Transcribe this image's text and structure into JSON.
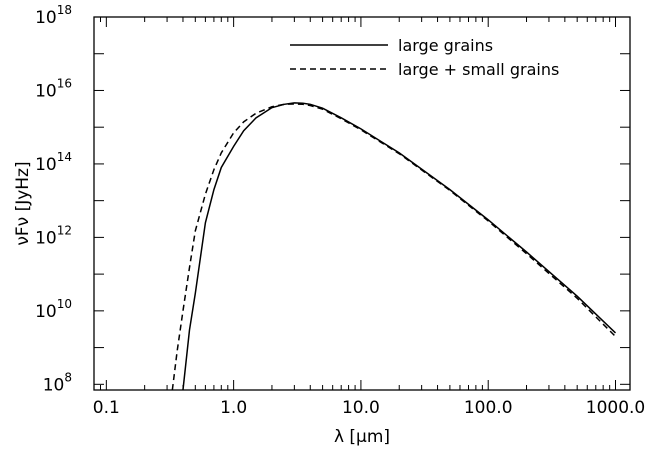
{
  "chart_data": {
    "type": "line",
    "xlabel": "λ [μm]",
    "ylabel": "νFν [JyHz]",
    "xscale": "log",
    "yscale": "log",
    "xlim": [
      0.08,
      1300
    ],
    "ylim": [
      70000000.0,
      1e+18
    ],
    "x_ticks": [
      "0.1",
      "1.0",
      "10.0",
      "100.0",
      "1000.0"
    ],
    "y_ticks": [
      {
        "base": "10",
        "exp": "8",
        "value": 100000000.0
      },
      {
        "base": "10",
        "exp": "10",
        "value": 10000000000.0
      },
      {
        "base": "10",
        "exp": "12",
        "value": 1000000000000.0
      },
      {
        "base": "10",
        "exp": "14",
        "value": 100000000000000.0
      },
      {
        "base": "10",
        "exp": "16",
        "value": 1e+16
      },
      {
        "base": "10",
        "exp": "18",
        "value": 1e+18
      }
    ],
    "grid": false,
    "legend_position": "top-right",
    "series": [
      {
        "name": "large grains",
        "style": "solid",
        "color": "#000000",
        "points": [
          [
            0.4,
            70000000.0
          ],
          [
            0.45,
            3000000000.0
          ],
          [
            0.5,
            30000000000.0
          ],
          [
            0.6,
            2500000000000.0
          ],
          [
            0.7,
            20000000000000.0
          ],
          [
            0.8,
            80000000000000.0
          ],
          [
            1.0,
            300000000000000.0
          ],
          [
            1.2,
            800000000000000.0
          ],
          [
            1.5,
            1800000000000000.0
          ],
          [
            2.0,
            3400000000000000.0
          ],
          [
            2.5,
            4200000000000000.0
          ],
          [
            3.0,
            4600000000000000.0
          ],
          [
            3.5,
            4500000000000000.0
          ],
          [
            4.0,
            4200000000000000.0
          ],
          [
            5.0,
            3300000000000000.0
          ],
          [
            7.0,
            1800000000000000.0
          ],
          [
            10.0,
            900000000000000.0
          ],
          [
            20.0,
            200000000000000.0
          ],
          [
            50.0,
            20000000000000.0
          ],
          [
            100.0,
            3000000000000.0
          ],
          [
            200.0,
            400000000000.0
          ],
          [
            500.0,
            25000000000.0
          ],
          [
            1000.0,
            2500000000.0
          ]
        ]
      },
      {
        "name": "large + small grains",
        "style": "dashed",
        "color": "#000000",
        "points": [
          [
            0.33,
            70000000.0
          ],
          [
            0.36,
            800000000.0
          ],
          [
            0.4,
            10000000000.0
          ],
          [
            0.45,
            150000000000.0
          ],
          [
            0.5,
            1500000000000.0
          ],
          [
            0.6,
            15000000000000.0
          ],
          [
            0.7,
            70000000000000.0
          ],
          [
            0.8,
            200000000000000.0
          ],
          [
            1.0,
            700000000000000.0
          ],
          [
            1.2,
            1400000000000000.0
          ],
          [
            1.5,
            2400000000000000.0
          ],
          [
            2.0,
            3600000000000000.0
          ],
          [
            2.5,
            4200000000000000.0
          ],
          [
            3.0,
            4300000000000000.0
          ],
          [
            3.5,
            4200000000000000.0
          ],
          [
            4.0,
            3900000000000000.0
          ],
          [
            5.0,
            3100000000000000.0
          ],
          [
            7.0,
            1700000000000000.0
          ],
          [
            10.0,
            850000000000000.0
          ],
          [
            20.0,
            190000000000000.0
          ],
          [
            50.0,
            19000000000000.0
          ],
          [
            100.0,
            2800000000000.0
          ],
          [
            200.0,
            360000000000.0
          ],
          [
            500.0,
            22000000000.0
          ],
          [
            1000.0,
            2000000000.0
          ]
        ]
      }
    ]
  }
}
